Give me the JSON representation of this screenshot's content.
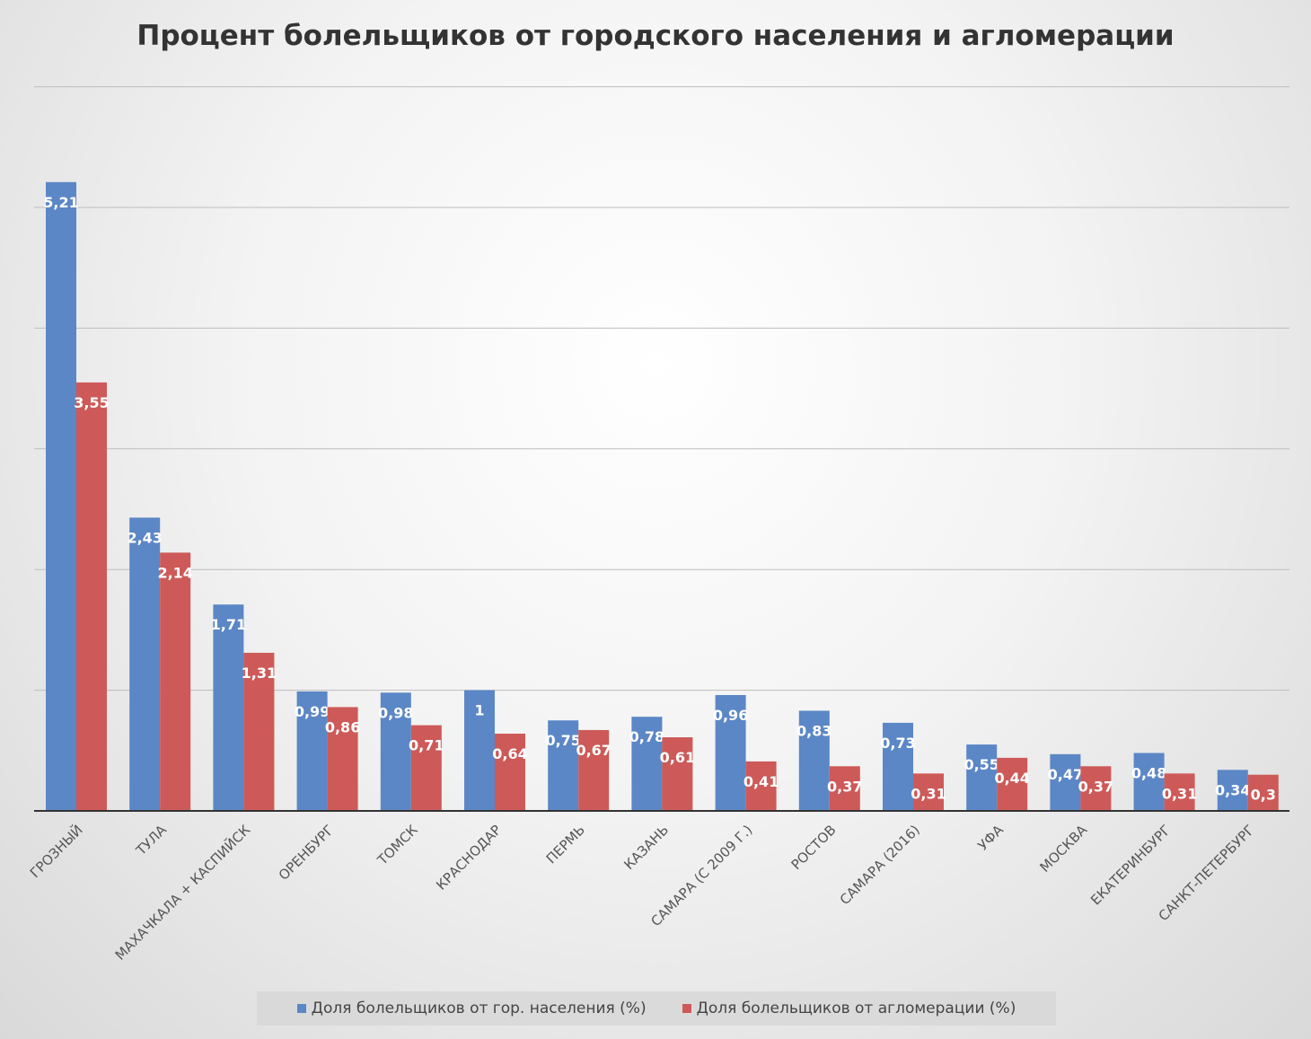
{
  "chart_data": {
    "type": "bar",
    "title": "Процент болельщиков от городского населения и агломерации",
    "categories": [
      "ГРОЗНЫЙ",
      "ТУЛА",
      "МАХАЧКАЛА + КАСПИЙСК",
      "ОРЕНБУРГ",
      "ТОМСК",
      "КРАСНОДАР",
      "ПЕРМЬ",
      "КАЗАНЬ",
      "САМАРА (С 2009 Г.)",
      "РОСТОВ",
      "САМАРА (2016)",
      "УФА",
      "МОСКВА",
      "ЕКАТЕРИНБУРГ",
      "САНКТ-ПЕТЕРБУРГ"
    ],
    "series": [
      {
        "name": "Доля болельщиков от гор. населения (%)",
        "color": "#5b87c6",
        "values": [
          5.21,
          2.43,
          1.71,
          0.99,
          0.98,
          1,
          0.75,
          0.78,
          0.96,
          0.83,
          0.73,
          0.55,
          0.47,
          0.48,
          0.34
        ],
        "labels": [
          "5,21",
          "2,43",
          "1,71",
          "0,99",
          "0,98",
          "1",
          "0,75",
          "0,78",
          "0,96",
          "0,83",
          "0,73",
          "0,55",
          "0,47",
          "0,48",
          "0,34"
        ]
      },
      {
        "name": "Доля болельщиков от агломерации (%)",
        "color": "#cd5a58",
        "values": [
          3.55,
          2.14,
          1.31,
          0.86,
          0.71,
          0.64,
          0.67,
          0.61,
          0.41,
          0.37,
          0.31,
          0.44,
          0.37,
          0.31,
          0.3
        ],
        "labels": [
          "3,55",
          "2,14",
          "1,31",
          "0,86",
          "0,71",
          "0,64",
          "0,67",
          "0,61",
          "0,41",
          "0,37",
          "0,31",
          "0,44",
          "0,37",
          "0,31",
          "0,3"
        ]
      }
    ],
    "ylim": [
      0,
      6
    ],
    "grid": true,
    "legend_position": "bottom"
  }
}
